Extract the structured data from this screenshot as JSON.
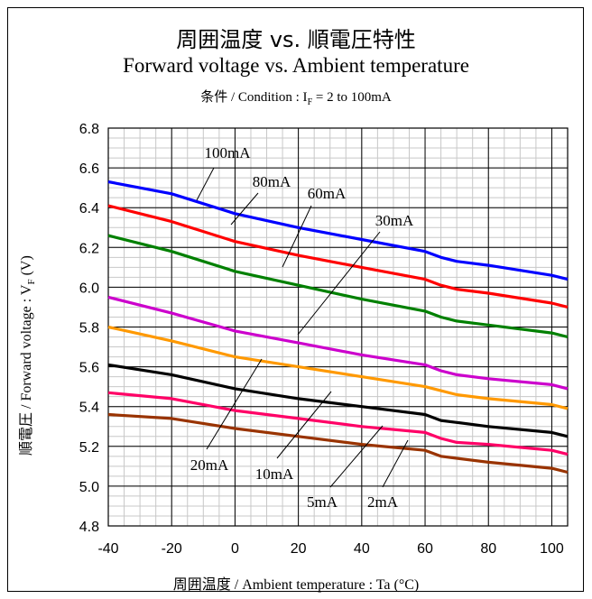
{
  "chart_data": {
    "type": "line",
    "title": "周囲温度 vs. 順電圧特性",
    "subtitle": "Forward voltage vs. Ambient temperature",
    "condition": {
      "prefix": "条件 / Condition : I",
      "sub": "F",
      "suffix": " = 2 to 100mA"
    },
    "xlabel": "周囲温度 / Ambient temperature : Ta (°C)",
    "ylabel": {
      "main": "順電圧 / Forward voltage : V",
      "sub": "F",
      "unit": " (V)"
    },
    "xlim": [
      -40,
      105
    ],
    "ylim": [
      4.8,
      6.8
    ],
    "xticks": [
      -40,
      -20,
      0,
      20,
      40,
      60,
      80,
      100
    ],
    "yticks": [
      4.8,
      5.0,
      5.2,
      5.4,
      5.6,
      5.8,
      6.0,
      6.2,
      6.4,
      6.6,
      6.8
    ],
    "ytick_labels": [
      "4.8",
      "5.0",
      "5.2",
      "5.4",
      "5.6",
      "5.8",
      "6.0",
      "6.2",
      "6.4",
      "6.6",
      "6.8"
    ],
    "grid": true,
    "series": [
      {
        "name": "100mA",
        "color": "#0000ff",
        "x": [
          -40,
          -20,
          0,
          20,
          40,
          60,
          65,
          70,
          80,
          100,
          105
        ],
        "y": [
          6.53,
          6.47,
          6.37,
          6.3,
          6.24,
          6.18,
          6.15,
          6.13,
          6.11,
          6.06,
          6.04
        ]
      },
      {
        "name": "80mA",
        "color": "#ff0000",
        "x": [
          -40,
          -20,
          0,
          20,
          40,
          60,
          65,
          70,
          80,
          100,
          105
        ],
        "y": [
          6.41,
          6.33,
          6.23,
          6.16,
          6.1,
          6.04,
          6.01,
          5.99,
          5.97,
          5.92,
          5.9
        ]
      },
      {
        "name": "60mA",
        "color": "#008000",
        "x": [
          -40,
          -20,
          0,
          20,
          40,
          60,
          65,
          70,
          80,
          100,
          105
        ],
        "y": [
          6.26,
          6.18,
          6.08,
          6.01,
          5.94,
          5.88,
          5.85,
          5.83,
          5.81,
          5.77,
          5.75
        ]
      },
      {
        "name": "30mA",
        "color": "#cc00cc",
        "x": [
          -40,
          -20,
          0,
          20,
          40,
          60,
          65,
          70,
          80,
          100,
          105
        ],
        "y": [
          5.95,
          5.87,
          5.78,
          5.72,
          5.66,
          5.61,
          5.58,
          5.56,
          5.54,
          5.51,
          5.49
        ]
      },
      {
        "name": "20mA",
        "color": "#ff9900",
        "x": [
          -40,
          -20,
          0,
          20,
          40,
          60,
          65,
          70,
          80,
          100,
          105
        ],
        "y": [
          5.8,
          5.73,
          5.65,
          5.6,
          5.55,
          5.5,
          5.48,
          5.46,
          5.44,
          5.41,
          5.39
        ]
      },
      {
        "name": "10mA",
        "color": "#000000",
        "x": [
          -40,
          -20,
          0,
          20,
          40,
          60,
          65,
          70,
          80,
          100,
          105
        ],
        "y": [
          5.61,
          5.56,
          5.49,
          5.44,
          5.4,
          5.36,
          5.33,
          5.32,
          5.3,
          5.27,
          5.25
        ]
      },
      {
        "name": "5mA",
        "color": "#ff0066",
        "x": [
          -40,
          -20,
          0,
          20,
          40,
          60,
          65,
          70,
          80,
          100,
          105
        ],
        "y": [
          5.47,
          5.44,
          5.38,
          5.34,
          5.3,
          5.27,
          5.24,
          5.22,
          5.21,
          5.18,
          5.16
        ]
      },
      {
        "name": "2mA",
        "color": "#993300",
        "x": [
          -40,
          -20,
          0,
          20,
          40,
          60,
          65,
          70,
          80,
          100,
          105
        ],
        "y": [
          5.36,
          5.34,
          5.29,
          5.25,
          5.21,
          5.18,
          5.15,
          5.14,
          5.12,
          5.09,
          5.07
        ]
      }
    ]
  }
}
